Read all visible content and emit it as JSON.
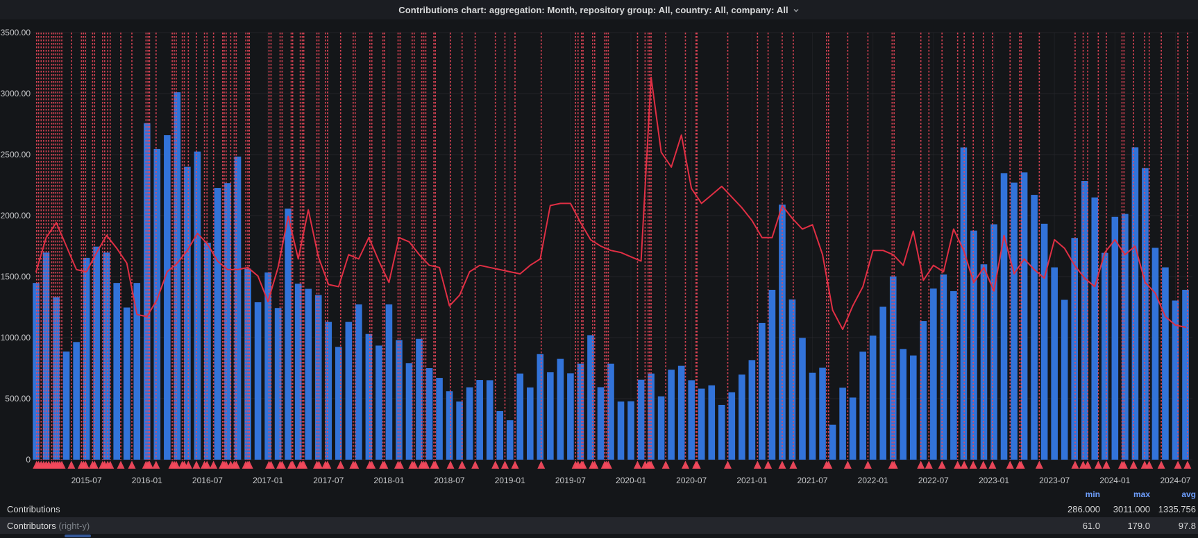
{
  "title": {
    "text": "Contributions chart: aggregation: Month, repository group: All, country: All, company: All"
  },
  "y_axis": {
    "ticks": [
      {
        "value": 3500,
        "label": "3500.00"
      },
      {
        "value": 3000,
        "label": "3000.00"
      },
      {
        "value": 2500,
        "label": "2500.00"
      },
      {
        "value": 2000,
        "label": "2000.00"
      },
      {
        "value": 1500,
        "label": "1500.00"
      },
      {
        "value": 1000,
        "label": "1000.00"
      },
      {
        "value": 500,
        "label": "500.00"
      },
      {
        "value": 0,
        "label": "0"
      }
    ]
  },
  "x_axis": {
    "ticks": [
      {
        "index": 5,
        "label": "2015-07"
      },
      {
        "index": 11,
        "label": "2016-01"
      },
      {
        "index": 17,
        "label": "2016-07"
      },
      {
        "index": 23,
        "label": "2017-01"
      },
      {
        "index": 29,
        "label": "2017-07"
      },
      {
        "index": 35,
        "label": "2018-01"
      },
      {
        "index": 41,
        "label": "2018-07"
      },
      {
        "index": 47,
        "label": "2019-01"
      },
      {
        "index": 53,
        "label": "2019-07"
      },
      {
        "index": 59,
        "label": "2020-01"
      },
      {
        "index": 65,
        "label": "2020-07"
      },
      {
        "index": 71,
        "label": "2021-01"
      },
      {
        "index": 77,
        "label": "2021-07"
      },
      {
        "index": 83,
        "label": "2022-01"
      },
      {
        "index": 89,
        "label": "2022-07"
      },
      {
        "index": 95,
        "label": "2023-01"
      },
      {
        "index": 101,
        "label": "2023-07"
      },
      {
        "index": 107,
        "label": "2024-01"
      },
      {
        "index": 113,
        "label": "2024-07"
      }
    ]
  },
  "chart_data": {
    "type": "bar",
    "title": "Contributions chart: aggregation: Month, repository group: All, country: All, company: All",
    "xlabel": "",
    "ylabel": "",
    "left_axis_range": [
      0,
      3500
    ],
    "right_axis_range": [
      0,
      200
    ],
    "grid": true,
    "categories": [
      "2015-02",
      "2015-03",
      "2015-04",
      "2015-05",
      "2015-06",
      "2015-07",
      "2015-08",
      "2015-09",
      "2015-10",
      "2015-11",
      "2015-12",
      "2016-01",
      "2016-02",
      "2016-03",
      "2016-04",
      "2016-05",
      "2016-06",
      "2016-07",
      "2016-08",
      "2016-09",
      "2016-10",
      "2016-11",
      "2016-12",
      "2017-01",
      "2017-02",
      "2017-03",
      "2017-04",
      "2017-05",
      "2017-06",
      "2017-07",
      "2017-08",
      "2017-09",
      "2017-10",
      "2017-11",
      "2017-12",
      "2018-01",
      "2018-02",
      "2018-03",
      "2018-04",
      "2018-05",
      "2018-06",
      "2018-07",
      "2018-08",
      "2018-09",
      "2018-10",
      "2018-11",
      "2018-12",
      "2019-01",
      "2019-02",
      "2019-03",
      "2019-04",
      "2019-05",
      "2019-06",
      "2019-07",
      "2019-08",
      "2019-09",
      "2019-10",
      "2019-11",
      "2019-12",
      "2020-01",
      "2020-02",
      "2020-03",
      "2020-04",
      "2020-05",
      "2020-06",
      "2020-07",
      "2020-08",
      "2020-09",
      "2020-10",
      "2020-11",
      "2020-12",
      "2021-01",
      "2021-02",
      "2021-03",
      "2021-04",
      "2021-05",
      "2021-06",
      "2021-07",
      "2021-08",
      "2021-09",
      "2021-10",
      "2021-11",
      "2021-12",
      "2022-01",
      "2022-02",
      "2022-03",
      "2022-04",
      "2022-05",
      "2022-06",
      "2022-07",
      "2022-08",
      "2022-09",
      "2022-10",
      "2022-11",
      "2022-12",
      "2023-01",
      "2023-02",
      "2023-03",
      "2023-04",
      "2023-05",
      "2023-06",
      "2023-07",
      "2023-08",
      "2023-09",
      "2023-10",
      "2023-11",
      "2023-12",
      "2024-01",
      "2024-02",
      "2024-03",
      "2024-04",
      "2024-05",
      "2024-06",
      "2024-07",
      "2024-08"
    ],
    "series": [
      {
        "name": "Contributions",
        "type": "bar",
        "axis": "left",
        "color": "#3273d9",
        "values": [
          1448,
          1697,
          1332,
          886,
          964,
          1654,
          1746,
          1697,
          1448,
          1247,
          1448,
          2758,
          2546,
          2659,
          3011,
          2400,
          2525,
          1778,
          2227,
          2266,
          2484,
          1565,
          1290,
          1534,
          1243,
          2058,
          1442,
          1400,
          1349,
          1130,
          924,
          1130,
          1272,
          1030,
          935,
          1272,
          980,
          790,
          990,
          750,
          670,
          561,
          476,
          593,
          653,
          651,
          398,
          323,
          706,
          592,
          865,
          716,
          826,
          708,
          786,
          1020,
          594,
          786,
          476,
          478,
          655,
          706,
          519,
          737,
          769,
          651,
          582,
          609,
          449,
          552,
          697,
          816,
          1120,
          1392,
          2090,
          1313,
          998,
          712,
          753,
          286,
          590,
          509,
          885,
          1017,
          1253,
          1502,
          907,
          854,
          1136,
          1402,
          1518,
          1381,
          2559,
          1877,
          1601,
          1929,
          2347,
          2270,
          2355,
          2170,
          1933,
          1576,
          1310,
          1817,
          2284,
          2149,
          1695,
          1990,
          2014,
          2560,
          2390,
          1736,
          1576,
          1304,
          1392
        ]
      },
      {
        "name": "Contributors",
        "type": "line",
        "axis": "right",
        "color": "#e02f44",
        "values": [
          88,
          104,
          111,
          100,
          89,
          88,
          97,
          105,
          99,
          92,
          68,
          67,
          75,
          88,
          92,
          98,
          106,
          101,
          93,
          89,
          89,
          90,
          86,
          74,
          90,
          114,
          94,
          117,
          95,
          82,
          81,
          96,
          94,
          104,
          93,
          83,
          104,
          102,
          96,
          91,
          90,
          72,
          77,
          88,
          91,
          90,
          89,
          88,
          87,
          91,
          94,
          119,
          120,
          120,
          111,
          103,
          100,
          98,
          97,
          95,
          93,
          179,
          144,
          137,
          152,
          127,
          120,
          124,
          128,
          123,
          118,
          112,
          104,
          104,
          119,
          113,
          108,
          110,
          96,
          70,
          61,
          72,
          81,
          98,
          98,
          96,
          91,
          107,
          84,
          91,
          88,
          108,
          98,
          83,
          90,
          79,
          105,
          87,
          94,
          89,
          85,
          103,
          99,
          91,
          85,
          81,
          97,
          103,
          96,
          100,
          83,
          78,
          67,
          63,
          62
        ]
      }
    ],
    "annotation_color": "#f2495c",
    "annotations_months": [
      0.05,
      0.25,
      0.5,
      0.75,
      1.0,
      1.25,
      1.55,
      1.75,
      1.95,
      2.15,
      2.35,
      2.55,
      3.5,
      4.5,
      4.7,
      4.9,
      5.6,
      5.8,
      6.6,
      6.8,
      7.1,
      7.35,
      8.4,
      9.5,
      10.9,
      11.1,
      11.25,
      11.9,
      13.5,
      13.7,
      13.9,
      14.5,
      14.7,
      15.1,
      15.9,
      16.7,
      16.95,
      17.6,
      18.5,
      18.65,
      18.85,
      19.3,
      19.65,
      19.85,
      20.8,
      21.0,
      21.15,
      23.1,
      23.3,
      24.2,
      24.4,
      25.3,
      25.45,
      26.2,
      26.4,
      26.55,
      27.85,
      28.05,
      28.7,
      28.9,
      30.2,
      31.45,
      31.65,
      33.1,
      33.3,
      34.4,
      34.55,
      35.9,
      36.1,
      37.3,
      37.5,
      38.25,
      38.45,
      38.65,
      39.45,
      39.6,
      41.1,
      42.25,
      43.55,
      45.55,
      46.5,
      47.5,
      50.1,
      53.5,
      53.75,
      54.1,
      54.25,
      55.2,
      55.4,
      56.4,
      56.55,
      56.75,
      59.65,
      60.4,
      60.7,
      60.85,
      61.0,
      62.45,
      64.4,
      65.45,
      65.55,
      68.6,
      71.55,
      72.6,
      74.0,
      75.1,
      78.4,
      78.6,
      80.5,
      82.5,
      84.9,
      85.1,
      87.75,
      88.55,
      89.85,
      91.4,
      92.05,
      92.95,
      93.95,
      94.85,
      96.6,
      97.55,
      97.7,
      99.5,
      103.05,
      103.85,
      104.3,
      105.35,
      106.15,
      107.7,
      107.9,
      108.85,
      109.95,
      110.4,
      111.6,
      113.25,
      114.2
    ],
    "legend_position": "bottom"
  },
  "legend": {
    "columns": {
      "min": "min",
      "max": "max",
      "avg": "avg"
    },
    "rows": [
      {
        "label": "Contributions",
        "suffix": "",
        "min": "286.000",
        "max": "3011.000",
        "avg": "1335.756"
      },
      {
        "label": "Contributors",
        "suffix": " (right-y)",
        "min": "61.0",
        "max": "179.0",
        "avg": "97.8"
      }
    ]
  },
  "colors": {
    "bar": "#3273d9",
    "line": "#e02f44",
    "annotation": "#f2495c",
    "header_bg": "#1b1d22",
    "panel_bg": "#141619",
    "grid": "#2e2f34",
    "axis_text": "#c8c9cb",
    "legend_header": "#6e9fff",
    "row_highlight": "#24262c"
  }
}
